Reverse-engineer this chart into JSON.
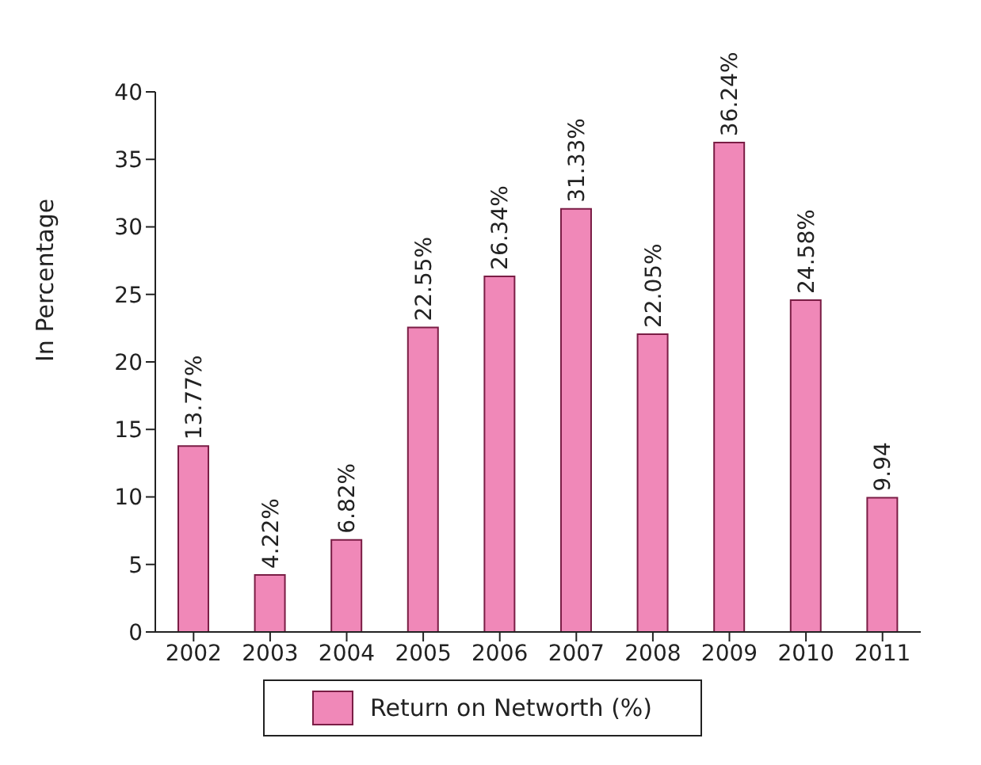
{
  "chart_data": {
    "type": "bar",
    "ylabel": "In Percentage",
    "categories": [
      "2002",
      "2003",
      "2004",
      "2005",
      "2006",
      "2007",
      "2008",
      "2009",
      "2010",
      "2011"
    ],
    "series": [
      {
        "name": "Return on Networth (%)",
        "color": "#f088b8",
        "values": [
          13.77,
          4.22,
          6.82,
          22.55,
          26.34,
          31.33,
          22.05,
          36.24,
          24.58,
          9.94
        ],
        "value_labels": [
          "13.77%",
          "4.22%",
          "6.82%",
          "22.55%",
          "26.34%",
          "31.33%",
          "22.05%",
          "36.24%",
          "24.58%",
          "9.94"
        ]
      }
    ],
    "ylim": [
      0,
      40
    ],
    "yticks": [
      0,
      5,
      10,
      15,
      20,
      25,
      30,
      35,
      40
    ],
    "grid": false,
    "legend": "bottom"
  }
}
